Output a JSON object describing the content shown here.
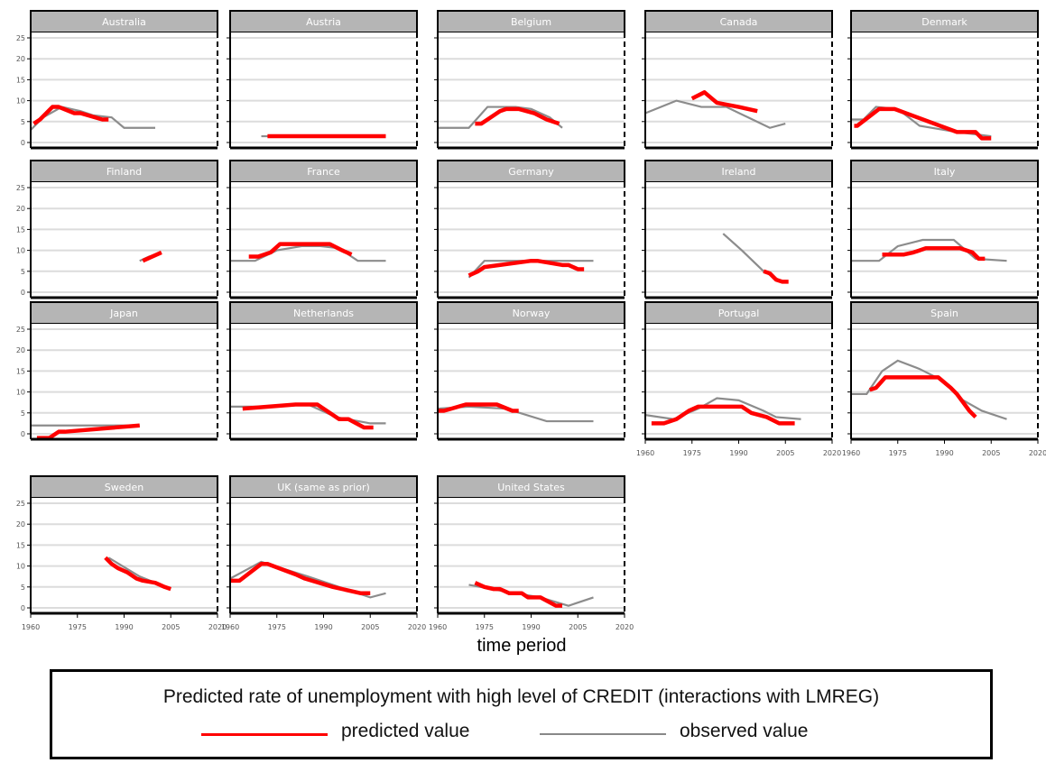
{
  "chart_data": {
    "type": "line",
    "xlabel": "time period",
    "xlim": [
      1960,
      2020
    ],
    "ylim": [
      0,
      25
    ],
    "x_ticks": [
      1960,
      1975,
      1990,
      2005,
      2020
    ],
    "y_ticks": [
      0,
      5,
      10,
      15,
      20,
      25
    ],
    "grid": true,
    "legend": {
      "title": "Predicted rate of unemployment with high level of CREDIT (interactions with LMREG)",
      "placement": "bottom",
      "entries": [
        {
          "name": "predicted value",
          "color": "#ff0000"
        },
        {
          "name": "observed value",
          "color": "#888888"
        }
      ]
    },
    "panels": [
      {
        "name": "Australia",
        "row": 0,
        "col": 0,
        "observed": {
          "x": [
            1960,
            1964,
            1970,
            1976,
            1980,
            1986,
            1990,
            2000
          ],
          "y": [
            3.0,
            6.0,
            8.5,
            7.5,
            6.5,
            6.0,
            3.5,
            3.5
          ]
        },
        "predicted": {
          "x": [
            1961,
            1963,
            1967,
            1969,
            1974,
            1976,
            1983,
            1985
          ],
          "y": [
            4.5,
            5.5,
            8.5,
            8.5,
            7.0,
            7.0,
            5.5,
            5.5
          ]
        }
      },
      {
        "name": "Austria",
        "row": 0,
        "col": 1,
        "observed": {
          "x": [
            1970,
            2010
          ],
          "y": [
            1.5,
            1.5
          ]
        },
        "predicted": {
          "x": [
            1972,
            1980,
            1982,
            1986,
            1995,
            2002,
            2008,
            2010
          ],
          "y": [
            1.5,
            1.5,
            1.5,
            1.5,
            1.5,
            1.5,
            1.5,
            1.5
          ]
        }
      },
      {
        "name": "Belgium",
        "row": 0,
        "col": 2,
        "observed": {
          "x": [
            1960,
            1970,
            1976,
            1985,
            1990,
            1996,
            2000
          ],
          "y": [
            3.5,
            3.5,
            8.5,
            8.5,
            8.0,
            6.0,
            3.5
          ]
        },
        "predicted": {
          "x": [
            1972,
            1974,
            1978,
            1980,
            1982,
            1986,
            1991,
            1995,
            1999
          ],
          "y": [
            4.5,
            4.5,
            6.5,
            7.5,
            8.0,
            8.0,
            7.0,
            5.5,
            4.5
          ]
        }
      },
      {
        "name": "Canada",
        "row": 0,
        "col": 3,
        "observed": {
          "x": [
            1960,
            1970,
            1978,
            1986,
            1993,
            2000,
            2005
          ],
          "y": [
            7.0,
            10.0,
            8.5,
            8.5,
            6.0,
            3.5,
            4.5
          ]
        },
        "predicted": {
          "x": [
            1975,
            1979,
            1983,
            1990,
            1996
          ],
          "y": [
            10.5,
            12.0,
            9.5,
            8.5,
            7.5
          ]
        }
      },
      {
        "name": "Denmark",
        "row": 0,
        "col": 4,
        "observed": {
          "x": [
            1960,
            1964,
            1968,
            1975,
            1982,
            1994,
            2005
          ],
          "y": [
            5.5,
            5.5,
            8.5,
            8.0,
            4.0,
            2.5,
            1.5
          ]
        },
        "predicted": {
          "x": [
            1961,
            1962,
            1969,
            1971,
            1974,
            1994,
            2000,
            2002,
            2005
          ],
          "y": [
            4.0,
            4.0,
            8.0,
            8.0,
            8.0,
            2.5,
            2.5,
            1.0,
            1.0
          ]
        }
      },
      {
        "name": "Finland",
        "row": 1,
        "col": 0,
        "observed": {
          "x": [
            1995,
            1998,
            2002
          ],
          "y": [
            7.5,
            8.5,
            9.5
          ]
        },
        "predicted": {
          "x": [
            1996,
            2002
          ],
          "y": [
            7.5,
            9.5
          ]
        }
      },
      {
        "name": "France",
        "row": 1,
        "col": 1,
        "observed": {
          "x": [
            1960,
            1968,
            1975,
            1983,
            1989,
            1995,
            2001,
            2010
          ],
          "y": [
            7.5,
            7.5,
            10.0,
            11.0,
            11.0,
            10.5,
            7.5,
            7.5
          ]
        },
        "predicted": {
          "x": [
            1966,
            1969,
            1973,
            1976,
            1978,
            1983,
            1985,
            1988,
            1992,
            1996,
            1999
          ],
          "y": [
            8.5,
            8.5,
            9.5,
            11.5,
            11.5,
            11.5,
            11.5,
            11.5,
            11.5,
            10.0,
            9.0
          ]
        }
      },
      {
        "name": "Germany",
        "row": 1,
        "col": 2,
        "observed": {
          "x": [
            1970,
            1975,
            2010
          ],
          "y": [
            3.5,
            7.5,
            7.5
          ]
        },
        "predicted": {
          "x": [
            1970,
            1973,
            1975,
            1990,
            1992,
            2000,
            2002,
            2005,
            2007
          ],
          "y": [
            4.0,
            5.0,
            6.0,
            7.5,
            7.5,
            6.5,
            6.5,
            5.5,
            5.5
          ]
        }
      },
      {
        "name": "Ireland",
        "row": 1,
        "col": 3,
        "observed": {
          "x": [
            1985,
            1991,
            1998,
            2004
          ],
          "y": [
            14.0,
            10.0,
            5.0,
            2.5
          ]
        },
        "predicted": {
          "x": [
            1998,
            2000,
            2002,
            2004,
            2006
          ],
          "y": [
            5.0,
            4.5,
            3.0,
            2.5,
            2.5
          ]
        }
      },
      {
        "name": "Italy",
        "row": 1,
        "col": 4,
        "observed": {
          "x": [
            1960,
            1969,
            1975,
            1983,
            1993,
            2000,
            2010
          ],
          "y": [
            7.5,
            7.5,
            11.0,
            12.5,
            12.5,
            8.0,
            7.5
          ]
        },
        "predicted": {
          "x": [
            1970,
            1977,
            1980,
            1984,
            1990,
            1995,
            1999,
            2001,
            2003
          ],
          "y": [
            9.0,
            9.0,
            9.5,
            10.5,
            10.5,
            10.5,
            9.5,
            8.0,
            8.0
          ]
        }
      },
      {
        "name": "Japan",
        "row": 2,
        "col": 0,
        "observed": {
          "x": [
            1960,
            1995
          ],
          "y": [
            2.0,
            2.0
          ]
        },
        "predicted": {
          "x": [
            1962,
            1966,
            1969,
            1971,
            1995
          ],
          "y": [
            -1.0,
            -1.0,
            0.5,
            0.5,
            2.0
          ]
        }
      },
      {
        "name": "Netherlands",
        "row": 2,
        "col": 1,
        "observed": {
          "x": [
            1960,
            1970,
            1985,
            1994,
            2005,
            2010
          ],
          "y": [
            6.5,
            6.5,
            7.0,
            4.0,
            2.5,
            2.5
          ]
        },
        "predicted": {
          "x": [
            1964,
            1981,
            1983,
            1986,
            1988,
            1995,
            1998,
            2003,
            2006
          ],
          "y": [
            6.0,
            7.0,
            7.0,
            7.0,
            7.0,
            3.5,
            3.5,
            1.5,
            1.5
          ]
        }
      },
      {
        "name": "Norway",
        "row": 2,
        "col": 2,
        "observed": {
          "x": [
            1960,
            1970,
            1982,
            1995,
            2010
          ],
          "y": [
            6.0,
            6.5,
            6.0,
            3.0,
            3.0
          ]
        },
        "predicted": {
          "x": [
            1960,
            1962,
            1969,
            1971,
            1976,
            1979,
            1984,
            1986
          ],
          "y": [
            5.5,
            5.5,
            7.0,
            7.0,
            7.0,
            7.0,
            5.5,
            5.5
          ]
        }
      },
      {
        "name": "Portugal",
        "row": 2,
        "col": 3,
        "observed": {
          "x": [
            1960,
            1969,
            1977,
            1983,
            1990,
            1998,
            2002,
            2010
          ],
          "y": [
            4.5,
            3.5,
            6.0,
            8.5,
            8.0,
            5.5,
            4.0,
            3.5
          ]
        },
        "predicted": {
          "x": [
            1962,
            1966,
            1970,
            1974,
            1977,
            1982,
            1991,
            1994,
            1999,
            2003,
            2008
          ],
          "y": [
            2.5,
            2.5,
            3.5,
            5.5,
            6.5,
            6.5,
            6.5,
            5.0,
            4.0,
            2.5,
            2.5
          ]
        }
      },
      {
        "name": "Spain",
        "row": 2,
        "col": 4,
        "observed": {
          "x": [
            1960,
            1965,
            1970,
            1975,
            1982,
            1990,
            1996,
            2002,
            2010
          ],
          "y": [
            9.5,
            9.5,
            15.0,
            17.5,
            15.5,
            12.5,
            8.0,
            5.5,
            3.5
          ]
        },
        "predicted": {
          "x": [
            1966,
            1968,
            1971,
            1977,
            1981,
            1986,
            1988,
            1992,
            1994,
            1996,
            1998,
            2000
          ],
          "y": [
            10.5,
            11.0,
            13.5,
            13.5,
            13.5,
            13.5,
            13.5,
            11.0,
            9.5,
            7.5,
            5.5,
            4.0
          ]
        }
      },
      {
        "name": "Sweden",
        "row": 3,
        "col": 0,
        "observed": {
          "x": [
            1985,
            1995,
            2005
          ],
          "y": [
            12.0,
            7.5,
            4.5
          ]
        },
        "predicted": {
          "x": [
            1984,
            1986,
            1988,
            1991,
            1994,
            1996,
            2000,
            2003,
            2005
          ],
          "y": [
            12.0,
            10.5,
            9.5,
            8.5,
            7.0,
            6.5,
            6.0,
            5.0,
            4.5
          ]
        }
      },
      {
        "name": "UK (same as prior)",
        "row": 3,
        "col": 1,
        "observed": {
          "x": [
            1960,
            1970,
            1985,
            1997,
            2005,
            2010
          ],
          "y": [
            7.0,
            11.0,
            7.5,
            4.5,
            2.5,
            3.5
          ]
        },
        "predicted": {
          "x": [
            1960,
            1963,
            1970,
            1972,
            1981,
            1984,
            1993,
            2002,
            2005
          ],
          "y": [
            6.5,
            6.5,
            10.5,
            10.5,
            8.0,
            7.0,
            5.0,
            3.5,
            3.5
          ]
        }
      },
      {
        "name": "United States",
        "row": 3,
        "col": 2,
        "observed": {
          "x": [
            1970,
            1981,
            1993,
            2002,
            2010
          ],
          "y": [
            5.5,
            4.0,
            2.5,
            0.5,
            2.5
          ]
        },
        "predicted": {
          "x": [
            1972,
            1975,
            1978,
            1980,
            1983,
            1987,
            1989,
            1993,
            1998,
            2000
          ],
          "y": [
            6.0,
            5.0,
            4.5,
            4.5,
            3.5,
            3.5,
            2.5,
            2.5,
            0.5,
            0.5
          ]
        }
      }
    ]
  }
}
